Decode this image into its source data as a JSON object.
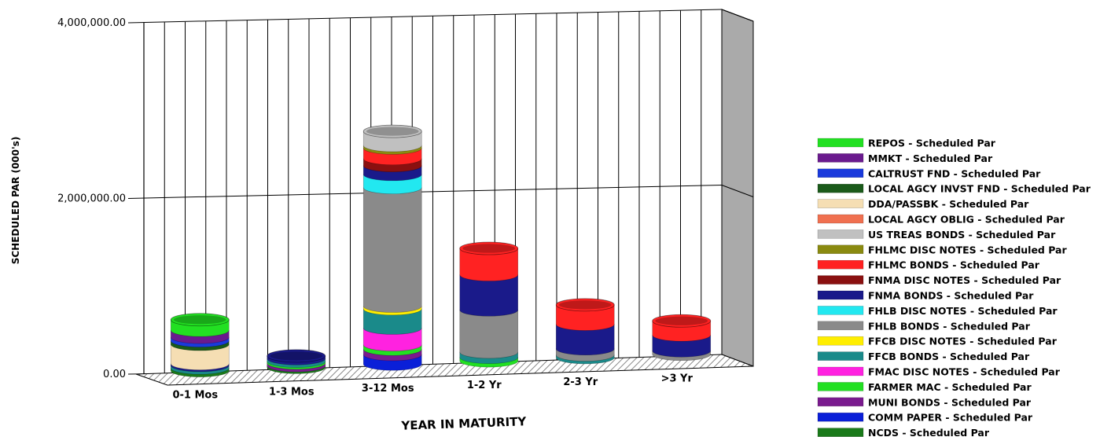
{
  "chart_data": {
    "type": "bar",
    "subtype": "stacked-3d-cylinder",
    "title": "",
    "xlabel": "YEAR IN MATURITY",
    "ylabel": "SCHEDULED PAR (000's)",
    "ylim": [
      0,
      4000000
    ],
    "y_ticks": [
      "0.00",
      "2,000,000.00",
      "4,000,000.00"
    ],
    "grid": true,
    "legend_position": "right",
    "categories": [
      "0-1 Mos",
      "1-3 Mos",
      "3-12 Mos",
      "1-2 Yr",
      "2-3 Yr",
      ">3 Yr"
    ],
    "series": [
      {
        "name": "NCDS - Scheduled Par",
        "color": "#1a7a1a",
        "values": [
          30000,
          20000,
          0,
          0,
          0,
          0
        ]
      },
      {
        "name": "COMM PAPER - Scheduled Par",
        "color": "#0a1fd8",
        "values": [
          0,
          0,
          110000,
          0,
          0,
          0
        ]
      },
      {
        "name": "MUNI BONDS - Scheduled Par",
        "color": "#7a1a8e",
        "values": [
          0,
          30000,
          60000,
          0,
          0,
          0
        ]
      },
      {
        "name": "FARMER MAC - Scheduled Par",
        "color": "#22e022",
        "values": [
          0,
          20000,
          50000,
          40000,
          0,
          0
        ]
      },
      {
        "name": "FMAC DISC NOTES - Scheduled Par",
        "color": "#ff22e0",
        "values": [
          0,
          0,
          190000,
          0,
          0,
          0
        ]
      },
      {
        "name": "FFCB BONDS - Scheduled Par",
        "color": "#1a8a8a",
        "values": [
          30000,
          30000,
          220000,
          60000,
          30000,
          0
        ]
      },
      {
        "name": "FFCB DISC NOTES - Scheduled Par",
        "color": "#ffee00",
        "values": [
          0,
          0,
          30000,
          0,
          0,
          0
        ]
      },
      {
        "name": "FHLB BONDS - Scheduled Par",
        "color": "#8a8a8a",
        "values": [
          0,
          0,
          1350000,
          480000,
          70000,
          40000
        ]
      },
      {
        "name": "FHLB DISC NOTES - Scheduled Par",
        "color": "#22e8f0",
        "values": [
          0,
          0,
          150000,
          0,
          0,
          0
        ]
      },
      {
        "name": "FNMA BONDS - Scheduled Par",
        "color": "#1a1a8a",
        "values": [
          20000,
          30000,
          100000,
          400000,
          280000,
          180000
        ]
      },
      {
        "name": "FNMA DISC NOTES - Scheduled Par",
        "color": "#8a1010",
        "values": [
          0,
          0,
          80000,
          0,
          0,
          0
        ]
      },
      {
        "name": "FHLMC BONDS - Scheduled Par",
        "color": "#ff2222",
        "values": [
          0,
          0,
          120000,
          300000,
          220000,
          160000
        ]
      },
      {
        "name": "FHLMC DISC NOTES - Scheduled Par",
        "color": "#8a8a10",
        "values": [
          0,
          0,
          30000,
          0,
          0,
          0
        ]
      },
      {
        "name": "US TREAS BONDS - Scheduled Par",
        "color": "#c0c0c0",
        "values": [
          0,
          0,
          160000,
          0,
          0,
          0
        ]
      },
      {
        "name": "LOCAL AGCY OBLIG - Scheduled Par",
        "color": "#f07050",
        "values": [
          0,
          0,
          0,
          0,
          0,
          0
        ]
      },
      {
        "name": "DDA/PASSBK - Scheduled Par",
        "color": "#f5deb3",
        "values": [
          220000,
          0,
          0,
          0,
          0,
          0
        ]
      },
      {
        "name": "LOCAL AGCY INVST FND - Scheduled Par",
        "color": "#1a5a1a",
        "values": [
          40000,
          0,
          0,
          0,
          0,
          0
        ]
      },
      {
        "name": "CALTRUST FND - Scheduled Par",
        "color": "#1a3adc",
        "values": [
          40000,
          0,
          0,
          0,
          0,
          0
        ]
      },
      {
        "name": "MMKT - Scheduled Par",
        "color": "#6a1a8e",
        "values": [
          80000,
          0,
          0,
          0,
          0,
          0
        ]
      },
      {
        "name": "REPOS - Scheduled Par",
        "color": "#22e022",
        "values": [
          120000,
          0,
          0,
          0,
          0,
          0
        ]
      }
    ],
    "legend": [
      {
        "label": "REPOS - Scheduled Par",
        "color": "#22e022"
      },
      {
        "label": "MMKT - Scheduled Par",
        "color": "#6a1a8e"
      },
      {
        "label": "CALTRUST FND - Scheduled Par",
        "color": "#1a3adc"
      },
      {
        "label": "LOCAL AGCY INVST FND - Scheduled Par",
        "color": "#1a5a1a"
      },
      {
        "label": "DDA/PASSBK - Scheduled Par",
        "color": "#f5deb3"
      },
      {
        "label": "LOCAL AGCY OBLIG - Scheduled Par",
        "color": "#f07050"
      },
      {
        "label": "US TREAS BONDS - Scheduled Par",
        "color": "#c0c0c0"
      },
      {
        "label": "FHLMC DISC NOTES - Scheduled Par",
        "color": "#8a8a10"
      },
      {
        "label": "FHLMC BONDS - Scheduled Par",
        "color": "#ff2222"
      },
      {
        "label": "FNMA DISC NOTES - Scheduled Par",
        "color": "#8a1010"
      },
      {
        "label": "FNMA BONDS - Scheduled Par",
        "color": "#1a1a8a"
      },
      {
        "label": "FHLB DISC NOTES - Scheduled Par",
        "color": "#22e8f0"
      },
      {
        "label": "FHLB BONDS - Scheduled Par",
        "color": "#8a8a8a"
      },
      {
        "label": "FFCB DISC NOTES - Scheduled Par",
        "color": "#ffee00"
      },
      {
        "label": "FFCB BONDS - Scheduled Par",
        "color": "#1a8a8a"
      },
      {
        "label": "FMAC DISC NOTES - Scheduled Par",
        "color": "#ff22e0"
      },
      {
        "label": "FARMER MAC - Scheduled Par",
        "color": "#22e022"
      },
      {
        "label": "MUNI BONDS - Scheduled Par",
        "color": "#7a1a8e"
      },
      {
        "label": "COMM PAPER - Scheduled Par",
        "color": "#0a1fd8"
      },
      {
        "label": "NCDS - Scheduled Par",
        "color": "#1a7a1a"
      }
    ]
  }
}
